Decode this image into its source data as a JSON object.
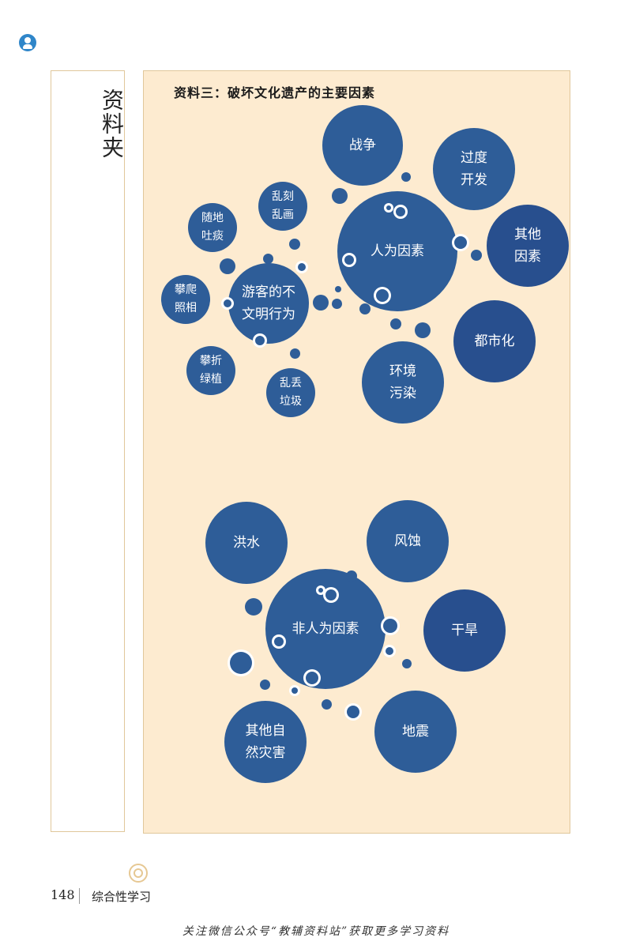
{
  "side_panel": {
    "title": "资料夹"
  },
  "main_panel": {
    "heading": "资料三：破坏文化遗产的主要因素",
    "human_cluster": {
      "hub": "人为因素",
      "factors": [
        "战争",
        "过度\n开发",
        "其他\n因素",
        "都市化",
        "环境\n污染"
      ],
      "tourist_hub": "游客的不\n文明行为",
      "tourist_behaviors": [
        "随地\n吐痰",
        "乱刻\n乱画",
        "攀爬\n照相",
        "攀折\n绿植",
        "乱丢\n垃圾"
      ]
    },
    "natural_cluster": {
      "hub": "非人为因素",
      "factors": [
        "洪水",
        "风蚀",
        "干旱",
        "地震",
        "其他自\n然灾害"
      ]
    }
  },
  "footer": {
    "page_number": "148",
    "section": "综合性学习"
  },
  "watermark": "关注微信公众号“教辅资料站”获取更多学习资料",
  "colors": {
    "bubble": "#2e5d98",
    "panel_bg": "#fdebd0",
    "border": "#e0c79b"
  }
}
